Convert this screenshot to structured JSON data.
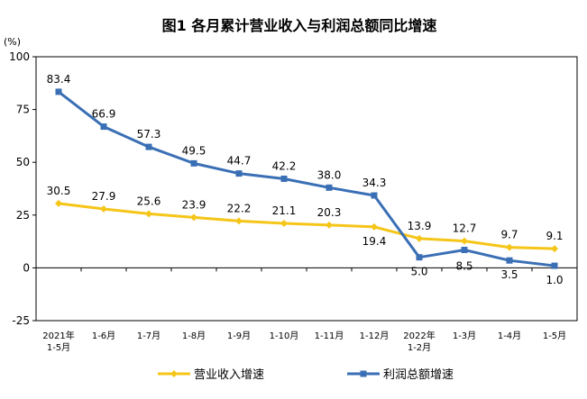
{
  "chart_data": {
    "type": "line",
    "title": "图1  各月累计营业收入与利润总额同比增速",
    "ylabel": "(%)",
    "ylim": [
      -25,
      100
    ],
    "yticks": [
      100,
      75,
      50,
      25,
      0,
      -25
    ],
    "grid": false,
    "legend_position": "bottom",
    "categories": [
      [
        "2021年",
        "1-5月"
      ],
      [
        "1-6月"
      ],
      [
        "1-7月"
      ],
      [
        "1-8月"
      ],
      [
        "1-9月"
      ],
      [
        "1-10月"
      ],
      [
        "1-11月"
      ],
      [
        "1-12月"
      ],
      [
        "2022年",
        "1-2月"
      ],
      [
        "1-3月"
      ],
      [
        "1-4月"
      ],
      [
        "1-5月"
      ]
    ],
    "series": [
      {
        "name": "营业收入增速",
        "color": "#F5C518",
        "marker": "diamond",
        "values": [
          30.5,
          27.9,
          25.6,
          23.9,
          22.2,
          21.1,
          20.3,
          19.4,
          13.9,
          12.7,
          9.7,
          9.1
        ],
        "labels": [
          "30.5",
          "27.9",
          "25.6",
          "23.9",
          "22.2",
          "21.1",
          "20.3",
          "19.4",
          "13.9",
          "12.7",
          "9.7",
          "9.1"
        ]
      },
      {
        "name": "利润总额增速",
        "color": "#3A6FB5",
        "marker": "square",
        "values": [
          83.4,
          66.9,
          57.3,
          49.5,
          44.7,
          42.2,
          38.0,
          34.3,
          5.0,
          8.5,
          3.5,
          1.0
        ],
        "labels": [
          "83.4",
          "66.9",
          "57.3",
          "49.5",
          "44.7",
          "42.2",
          "38.0",
          "34.3",
          "5.0",
          "8.5",
          "3.5",
          "1.0"
        ]
      }
    ]
  }
}
